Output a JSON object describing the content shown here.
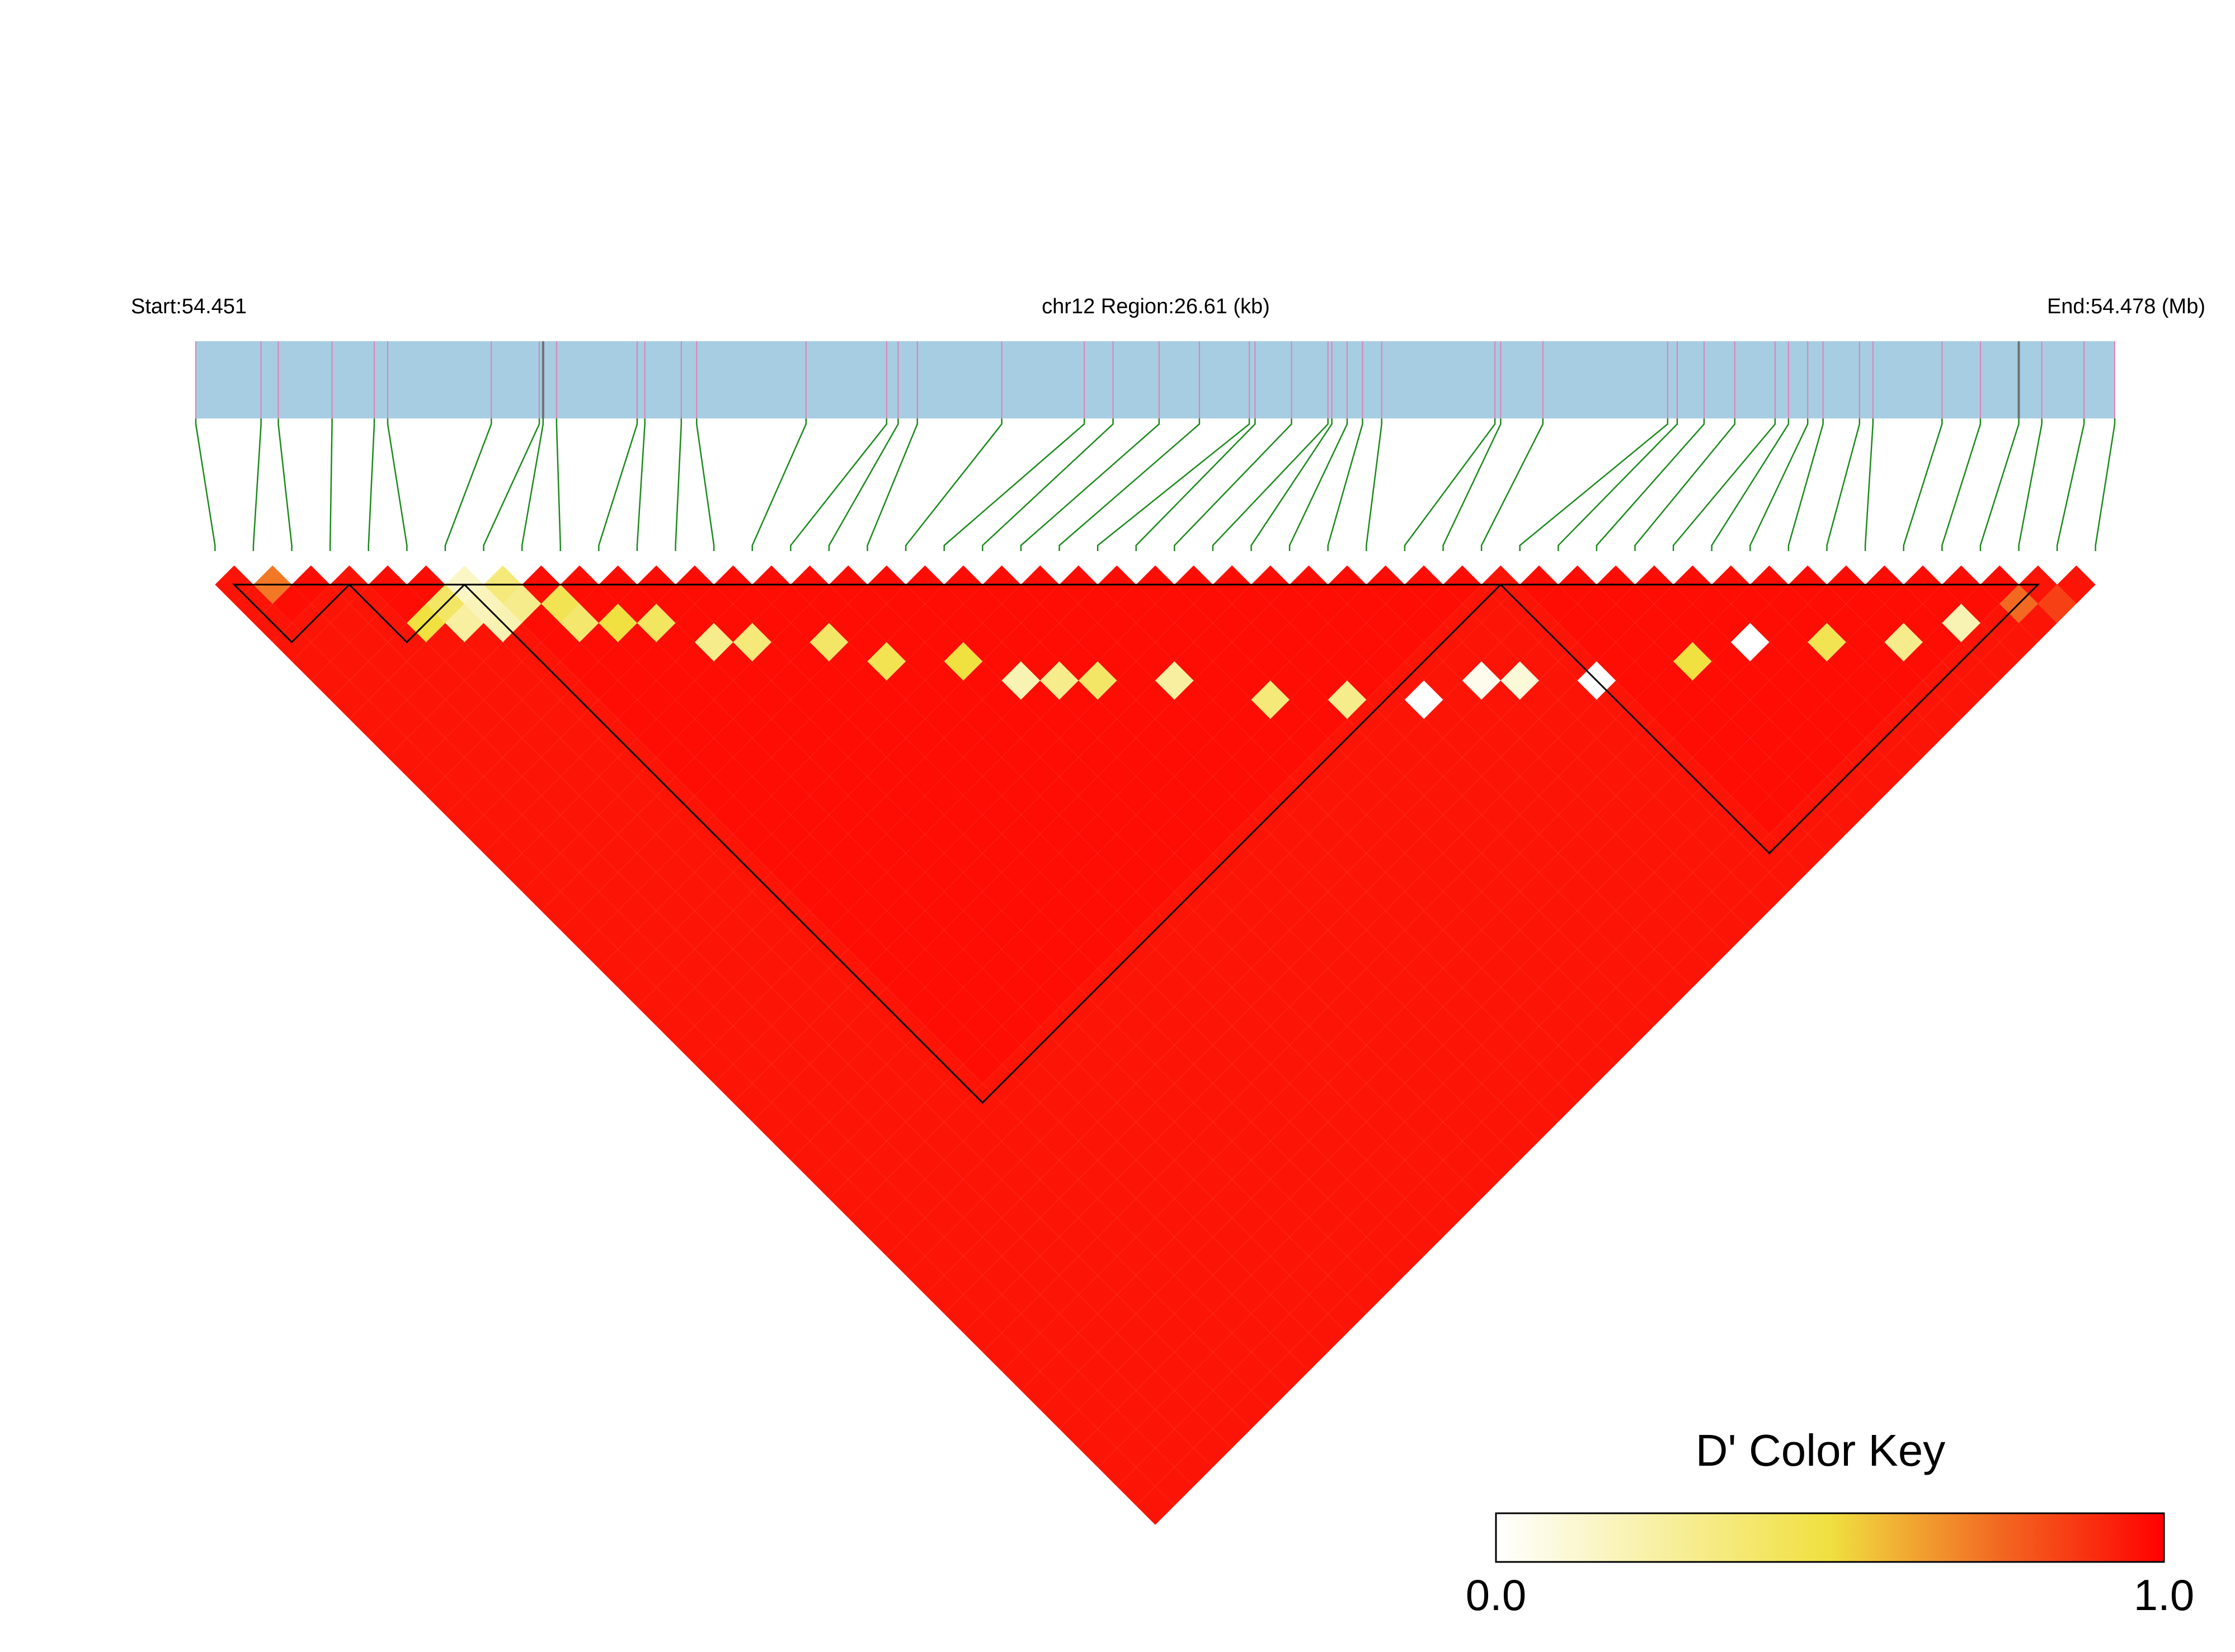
{
  "header": {
    "start_label": "Start:54.451",
    "region_label": "chr12 Region:26.61 (kb)",
    "end_label": "End:54.478 (Mb)"
  },
  "chart_data": {
    "type": "heatmap",
    "description_type": "linkage disequilibrium triangle",
    "region": {
      "chromosome": "chr12",
      "start_mb": 54.451,
      "end_mb": 54.478,
      "length_kb": 26.61
    },
    "snp_count": 50,
    "snp_positions_rel": [
      0.0,
      0.034,
      0.043,
      0.071,
      0.093,
      0.1,
      0.154,
      0.179,
      0.181,
      0.188,
      0.23,
      0.234,
      0.253,
      0.261,
      0.318,
      0.36,
      0.366,
      0.376,
      0.42,
      0.463,
      0.478,
      0.502,
      0.523,
      0.549,
      0.552,
      0.571,
      0.59,
      0.592,
      0.6,
      0.608,
      0.618,
      0.677,
      0.68,
      0.702,
      0.767,
      0.772,
      0.786,
      0.802,
      0.823,
      0.83,
      0.84,
      0.848,
      0.867,
      0.874,
      0.91,
      0.93,
      0.95,
      0.962,
      0.984,
      1.0
    ],
    "blocks": [
      [
        1,
        3
      ],
      [
        4,
        6
      ],
      [
        7,
        33
      ],
      [
        34,
        47
      ]
    ],
    "block_default_dprime": 0.97,
    "outside_default_dprime": 0.95,
    "special_cells": [
      {
        "i": 1,
        "j": 2,
        "d": 0.72
      },
      {
        "i": 6,
        "j": 7,
        "d": 0.15
      },
      {
        "i": 6,
        "j": 8,
        "d": 0.18
      },
      {
        "i": 6,
        "j": 9,
        "d": 0.2
      },
      {
        "i": 5,
        "j": 7,
        "d": 0.4
      },
      {
        "i": 5,
        "j": 8,
        "d": 0.25
      },
      {
        "i": 4,
        "j": 7,
        "d": 0.5
      },
      {
        "i": 7,
        "j": 8,
        "d": 0.35
      },
      {
        "i": 7,
        "j": 9,
        "d": 0.3
      },
      {
        "i": 8,
        "j": 10,
        "d": 0.45
      },
      {
        "i": 8,
        "j": 11,
        "d": 0.38
      },
      {
        "i": 9,
        "j": 12,
        "d": 0.5
      },
      {
        "i": 10,
        "j": 13,
        "d": 0.42
      },
      {
        "i": 11,
        "j": 15,
        "d": 0.3
      },
      {
        "i": 12,
        "j": 16,
        "d": 0.35
      },
      {
        "i": 14,
        "j": 18,
        "d": 0.4
      },
      {
        "i": 15,
        "j": 20,
        "d": 0.45
      },
      {
        "i": 17,
        "j": 22,
        "d": 0.5
      },
      {
        "i": 18,
        "j": 24,
        "d": 0.2
      },
      {
        "i": 19,
        "j": 25,
        "d": 0.3
      },
      {
        "i": 20,
        "j": 26,
        "d": 0.4
      },
      {
        "i": 22,
        "j": 28,
        "d": 0.25
      },
      {
        "i": 24,
        "j": 31,
        "d": 0.35
      },
      {
        "i": 26,
        "j": 33,
        "d": 0.3
      },
      {
        "i": 28,
        "j": 35,
        "d": 0.0
      },
      {
        "i": 30,
        "j": 36,
        "d": 0.05
      },
      {
        "i": 31,
        "j": 37,
        "d": 0.1
      },
      {
        "i": 33,
        "j": 39,
        "d": 0.0
      },
      {
        "i": 36,
        "j": 41,
        "d": 0.5
      },
      {
        "i": 38,
        "j": 42,
        "d": 0.0
      },
      {
        "i": 40,
        "j": 44,
        "d": 0.45
      },
      {
        "i": 42,
        "j": 46,
        "d": 0.3
      },
      {
        "i": 44,
        "j": 47,
        "d": 0.2
      },
      {
        "i": 46,
        "j": 48,
        "d": 0.75
      },
      {
        "i": 47,
        "j": 49,
        "d": 0.85
      }
    ],
    "color_key": {
      "title": "D' Color Key",
      "min_label": "0.0",
      "max_label": "1.0",
      "stops": [
        {
          "d": 0.0,
          "color": "#ffffff"
        },
        {
          "d": 0.5,
          "color": "#f0e040"
        },
        {
          "d": 0.75,
          "color": "#f26a22"
        },
        {
          "d": 1.0,
          "color": "#ff0000"
        }
      ]
    },
    "colors": {
      "gene_bar": "#a6cde1",
      "snp_tick": "#e080b8",
      "snp_tick_dark": "#707070",
      "connector": "#1a8a1a",
      "block_outline": "#000000"
    }
  }
}
